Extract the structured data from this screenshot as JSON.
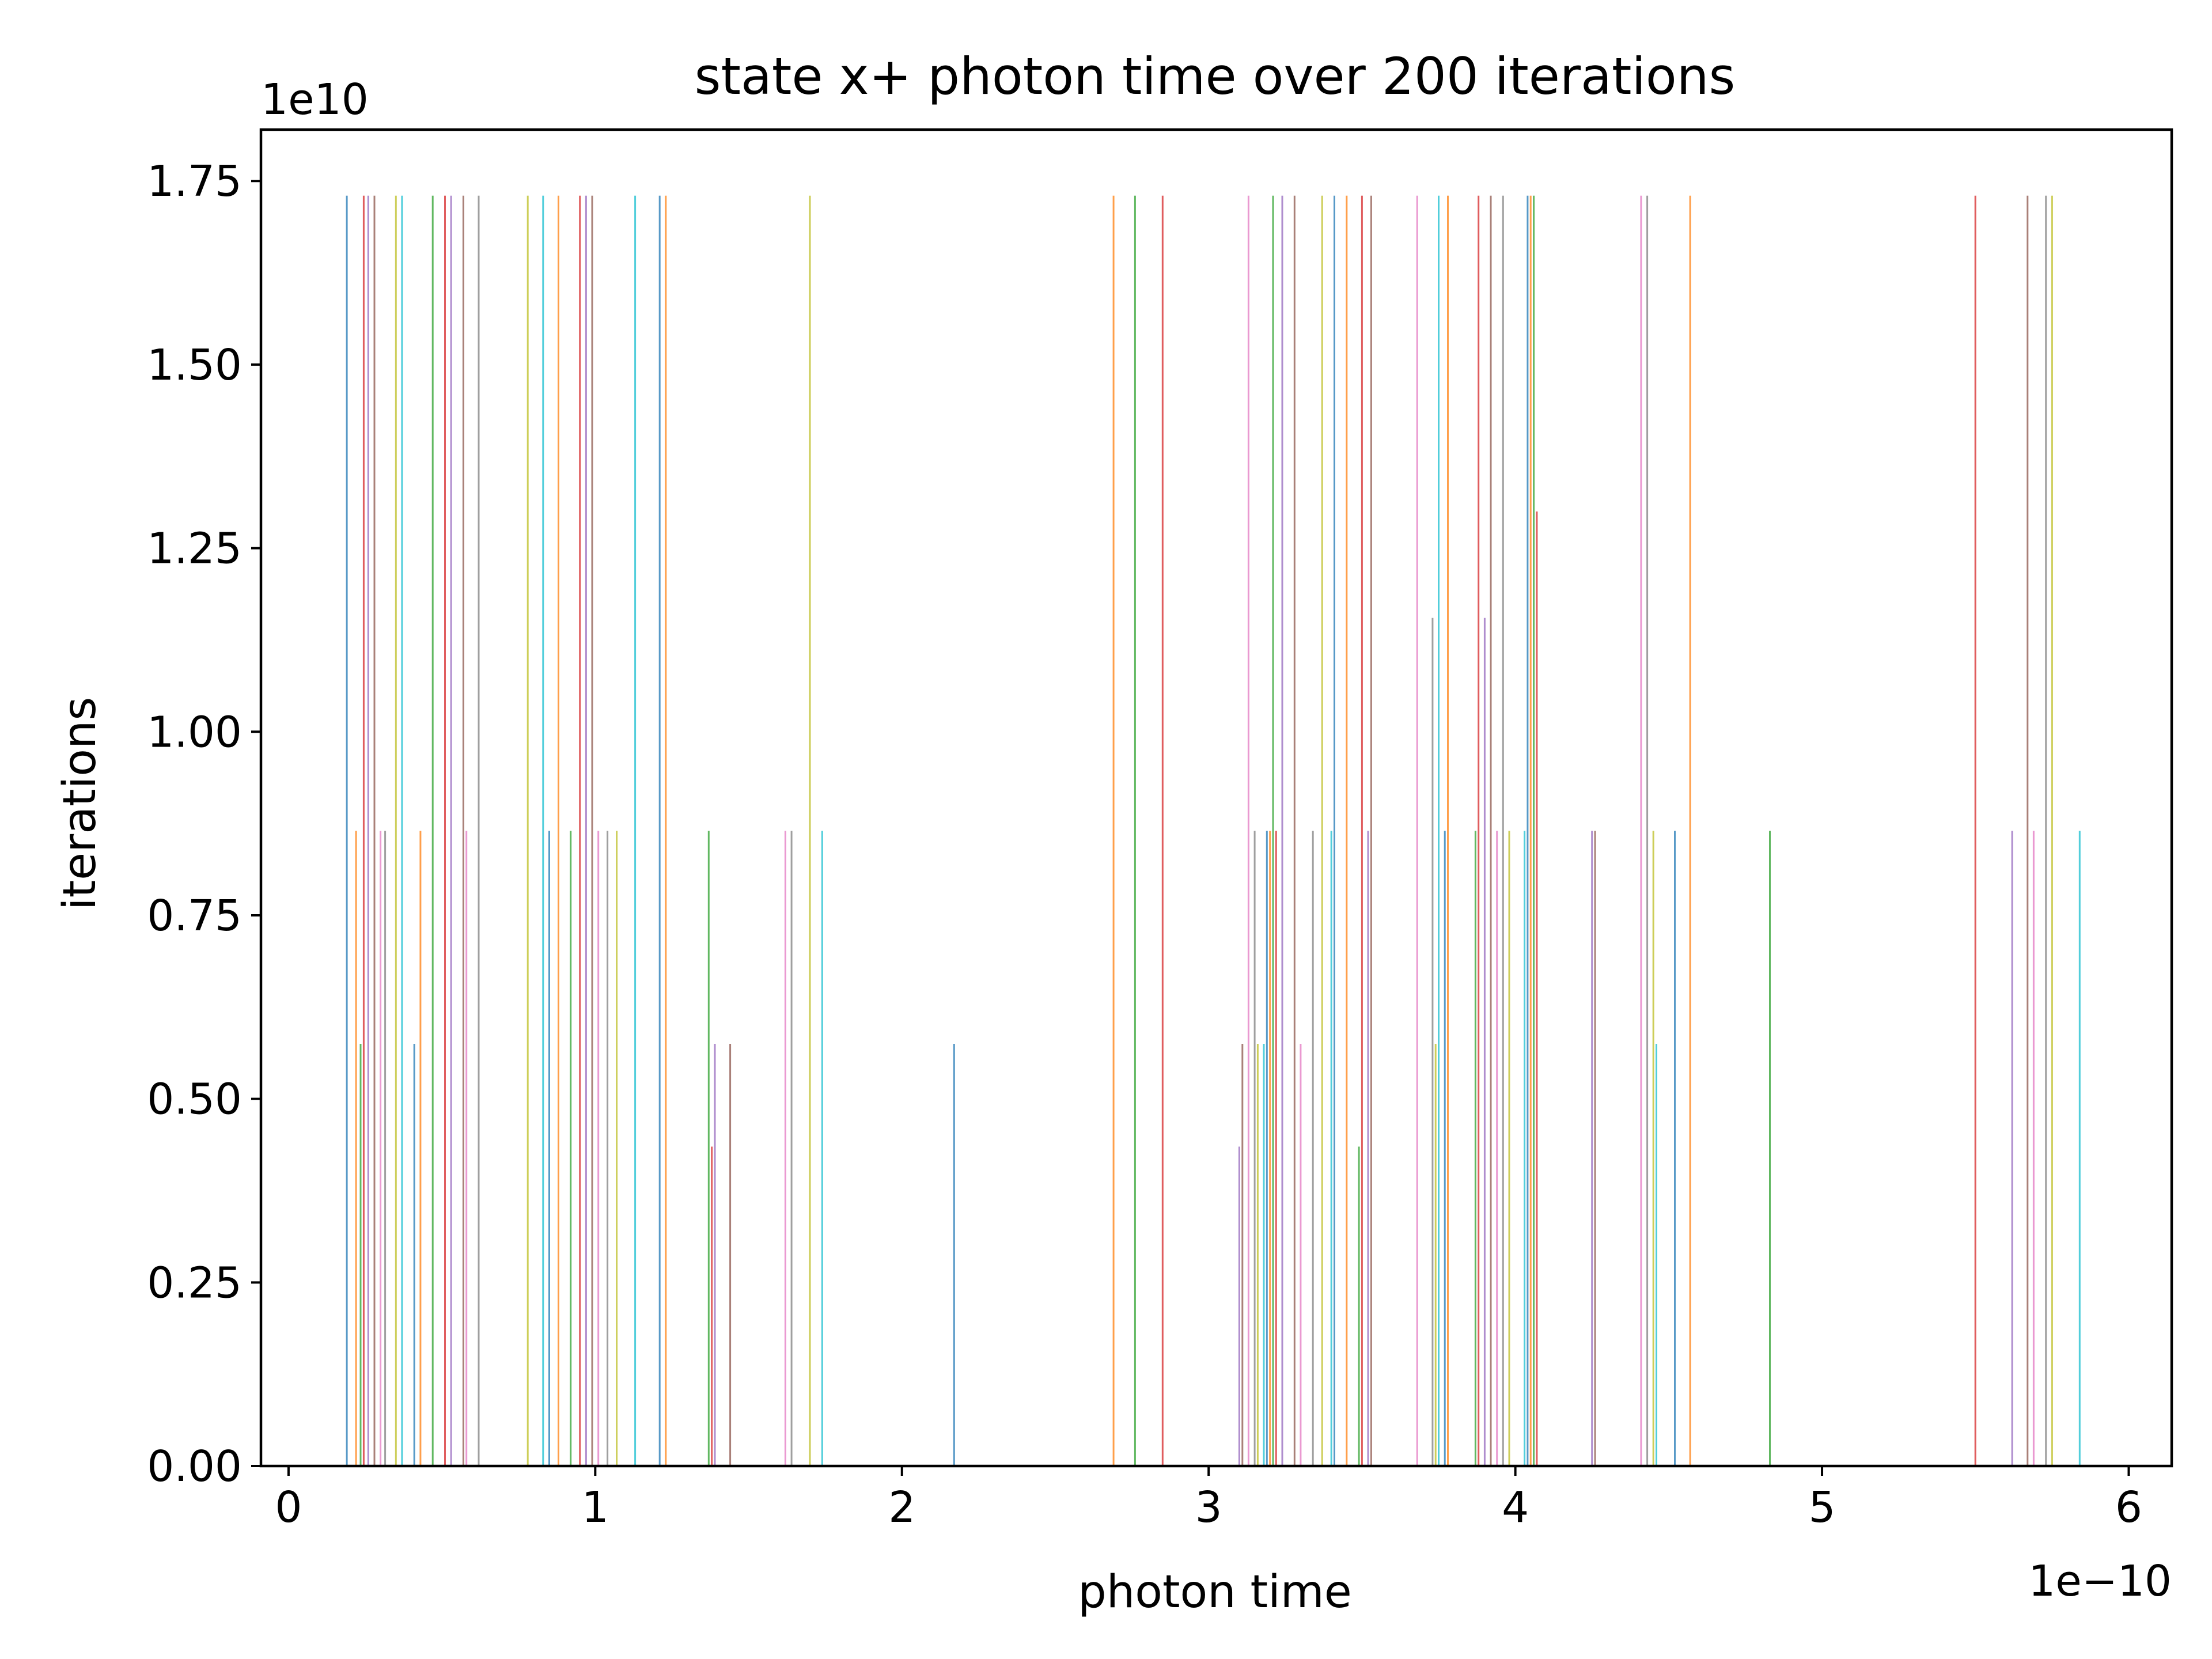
{
  "chart_data": {
    "type": "bar",
    "title": "state x+ photon time over 200 iterations",
    "xlabel": "photon time",
    "ylabel": "iterations",
    "x_offset_label": "1e−10",
    "y_offset_label": "1e10",
    "xlim": [
      -0.09,
      6.14
    ],
    "ylim": [
      0,
      1.82
    ],
    "x_ticks": [
      0,
      1,
      2,
      3,
      4,
      5,
      6
    ],
    "x_tick_labels": [
      "0",
      "1",
      "2",
      "3",
      "4",
      "5",
      "6"
    ],
    "y_ticks": [
      0,
      0.25,
      0.5,
      0.75,
      1.0,
      1.25,
      1.5,
      1.75
    ],
    "y_tick_labels": [
      "0.00",
      "0.25",
      "0.50",
      "0.75",
      "1.00",
      "1.25",
      "1.50",
      "1.75"
    ],
    "legend": "none",
    "grid": false,
    "palette": [
      "#1f77b4",
      "#ff7f0e",
      "#2ca02c",
      "#d62728",
      "#9467bd",
      "#8c564b",
      "#e377c2",
      "#7f7f7f",
      "#bcbd22",
      "#17becf"
    ],
    "bars": [
      {
        "x": 0.19,
        "y": 1.73
      },
      {
        "x": 0.22,
        "y": 0.865
      },
      {
        "x": 0.235,
        "y": 0.575
      },
      {
        "x": 0.245,
        "y": 1.73
      },
      {
        "x": 0.26,
        "y": 1.73
      },
      {
        "x": 0.28,
        "y": 1.73
      },
      {
        "x": 0.3,
        "y": 0.865
      },
      {
        "x": 0.315,
        "y": 0.865
      },
      {
        "x": 0.35,
        "y": 1.73
      },
      {
        "x": 0.37,
        "y": 1.73
      },
      {
        "x": 0.41,
        "y": 0.575
      },
      {
        "x": 0.43,
        "y": 0.865
      },
      {
        "x": 0.47,
        "y": 1.73
      },
      {
        "x": 0.51,
        "y": 1.73
      },
      {
        "x": 0.53,
        "y": 1.73
      },
      {
        "x": 0.57,
        "y": 1.73
      },
      {
        "x": 0.58,
        "y": 0.865
      },
      {
        "x": 0.62,
        "y": 1.73
      },
      {
        "x": 0.78,
        "y": 1.73
      },
      {
        "x": 0.83,
        "y": 1.73
      },
      {
        "x": 0.85,
        "y": 0.865
      },
      {
        "x": 0.88,
        "y": 1.73
      },
      {
        "x": 0.92,
        "y": 0.865
      },
      {
        "x": 0.95,
        "y": 1.73
      },
      {
        "x": 0.97,
        "y": 1.73
      },
      {
        "x": 0.99,
        "y": 1.73
      },
      {
        "x": 1.01,
        "y": 0.865
      },
      {
        "x": 1.04,
        "y": 0.865
      },
      {
        "x": 1.07,
        "y": 0.865
      },
      {
        "x": 1.13,
        "y": 1.73
      },
      {
        "x": 1.21,
        "y": 1.73
      },
      {
        "x": 1.23,
        "y": 1.73
      },
      {
        "x": 1.37,
        "y": 0.865
      },
      {
        "x": 1.38,
        "y": 0.435
      },
      {
        "x": 1.39,
        "y": 0.575
      },
      {
        "x": 1.44,
        "y": 0.575
      },
      {
        "x": 1.62,
        "y": 0.865
      },
      {
        "x": 1.64,
        "y": 0.865
      },
      {
        "x": 1.7,
        "y": 1.73
      },
      {
        "x": 1.74,
        "y": 0.865
      },
      {
        "x": 2.17,
        "y": 0.575
      },
      {
        "x": 2.69,
        "y": 1.73
      },
      {
        "x": 2.76,
        "y": 1.73
      },
      {
        "x": 2.85,
        "y": 1.73
      },
      {
        "x": 3.1,
        "y": 0.435
      },
      {
        "x": 3.11,
        "y": 0.575
      },
      {
        "x": 3.13,
        "y": 1.73
      },
      {
        "x": 3.15,
        "y": 0.865
      },
      {
        "x": 3.16,
        "y": 0.575
      },
      {
        "x": 3.18,
        "y": 0.575
      },
      {
        "x": 3.19,
        "y": 0.865
      },
      {
        "x": 3.2,
        "y": 0.865
      },
      {
        "x": 3.21,
        "y": 1.73
      },
      {
        "x": 3.22,
        "y": 0.865
      },
      {
        "x": 3.24,
        "y": 1.73
      },
      {
        "x": 3.28,
        "y": 1.73
      },
      {
        "x": 3.3,
        "y": 0.575
      },
      {
        "x": 3.34,
        "y": 0.865
      },
      {
        "x": 3.37,
        "y": 1.73
      },
      {
        "x": 3.4,
        "y": 0.865
      },
      {
        "x": 3.41,
        "y": 1.73
      },
      {
        "x": 3.45,
        "y": 1.73
      },
      {
        "x": 3.49,
        "y": 0.435
      },
      {
        "x": 3.5,
        "y": 1.73
      },
      {
        "x": 3.52,
        "y": 0.865
      },
      {
        "x": 3.53,
        "y": 1.73
      },
      {
        "x": 3.68,
        "y": 1.73
      },
      {
        "x": 3.73,
        "y": 1.155
      },
      {
        "x": 3.74,
        "y": 0.575
      },
      {
        "x": 3.75,
        "y": 1.73
      },
      {
        "x": 3.77,
        "y": 0.865
      },
      {
        "x": 3.78,
        "y": 1.73
      },
      {
        "x": 3.87,
        "y": 0.865
      },
      {
        "x": 3.88,
        "y": 1.73
      },
      {
        "x": 3.9,
        "y": 1.155
      },
      {
        "x": 3.92,
        "y": 1.73
      },
      {
        "x": 3.94,
        "y": 0.865
      },
      {
        "x": 3.96,
        "y": 1.73
      },
      {
        "x": 3.98,
        "y": 0.865
      },
      {
        "x": 4.03,
        "y": 0.865
      },
      {
        "x": 4.04,
        "y": 1.73
      },
      {
        "x": 4.05,
        "y": 1.73
      },
      {
        "x": 4.06,
        "y": 1.73
      },
      {
        "x": 4.07,
        "y": 1.3
      },
      {
        "x": 4.25,
        "y": 0.865
      },
      {
        "x": 4.26,
        "y": 0.865
      },
      {
        "x": 4.41,
        "y": 1.73
      },
      {
        "x": 4.43,
        "y": 1.73
      },
      {
        "x": 4.45,
        "y": 0.865
      },
      {
        "x": 4.46,
        "y": 0.575
      },
      {
        "x": 4.52,
        "y": 0.865
      },
      {
        "x": 4.57,
        "y": 1.73
      },
      {
        "x": 4.83,
        "y": 0.865
      },
      {
        "x": 5.5,
        "y": 1.73
      },
      {
        "x": 5.62,
        "y": 0.865
      },
      {
        "x": 5.67,
        "y": 1.73
      },
      {
        "x": 5.69,
        "y": 0.865
      },
      {
        "x": 5.73,
        "y": 1.73
      },
      {
        "x": 5.75,
        "y": 1.73
      },
      {
        "x": 5.84,
        "y": 0.865
      }
    ]
  }
}
